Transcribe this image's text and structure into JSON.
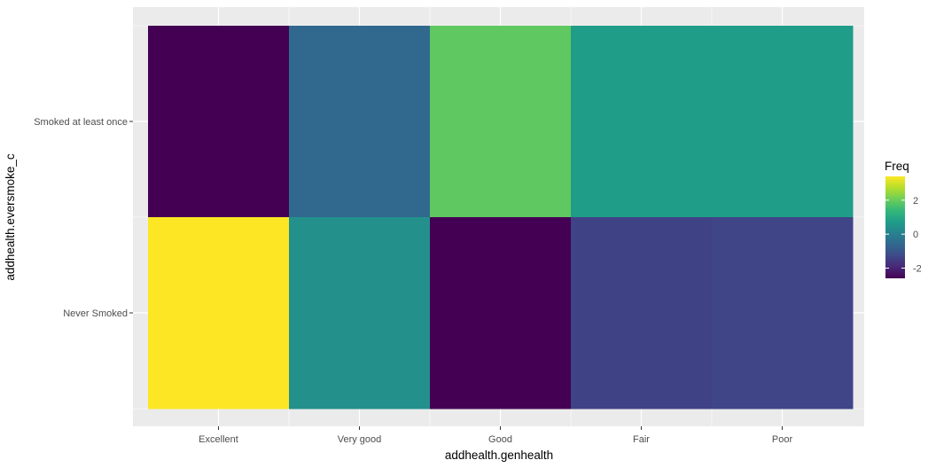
{
  "chart_data": {
    "type": "heatmap",
    "x": [
      "Excellent",
      "Very good",
      "Good",
      "Fair",
      "Poor"
    ],
    "y": [
      "Smoked at least once",
      "Never Smoked"
    ],
    "values": [
      [
        -2.6,
        -0.6,
        1.9,
        0.7,
        0.7
      ],
      [
        3.4,
        0.4,
        -2.6,
        -1.4,
        -1.35
      ]
    ],
    "xlabel": "addhealth.genhealth",
    "ylabel": "addhealth.eversmoke_c",
    "legend": {
      "title": "Freq",
      "ticks": [
        2,
        0,
        -2
      ],
      "range": [
        -2.6,
        3.4
      ],
      "placement": "right"
    },
    "colormap": "viridis",
    "grid": true,
    "colors": {
      "panel_background": "#ebebeb",
      "grid_line": "#ffffff"
    }
  }
}
